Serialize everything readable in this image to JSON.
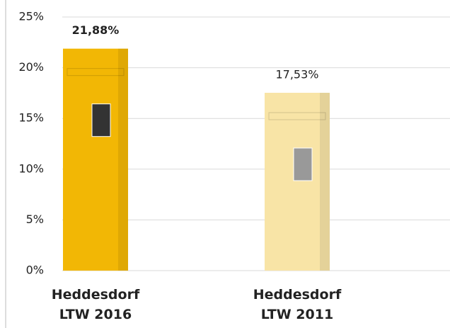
{
  "chart_data": {
    "type": "bar",
    "categories": [
      "Heddesdorf\nLTW 2016",
      "Heddesdorf\nLTW 2011"
    ],
    "values": [
      21.88,
      17.53
    ],
    "value_labels": [
      "21,88%",
      "17,53%"
    ],
    "colors": [
      "#f2b705",
      "#f8e4a6"
    ],
    "ylim": [
      0,
      25
    ],
    "yticks": [
      {
        "value": 0,
        "label": "0%"
      },
      {
        "value": 5,
        "label": "5%"
      },
      {
        "value": 10,
        "label": "10%"
      },
      {
        "value": 15,
        "label": "15%"
      },
      {
        "value": 20,
        "label": "20%"
      },
      {
        "value": 25,
        "label": "25%"
      }
    ],
    "grid": true
  }
}
